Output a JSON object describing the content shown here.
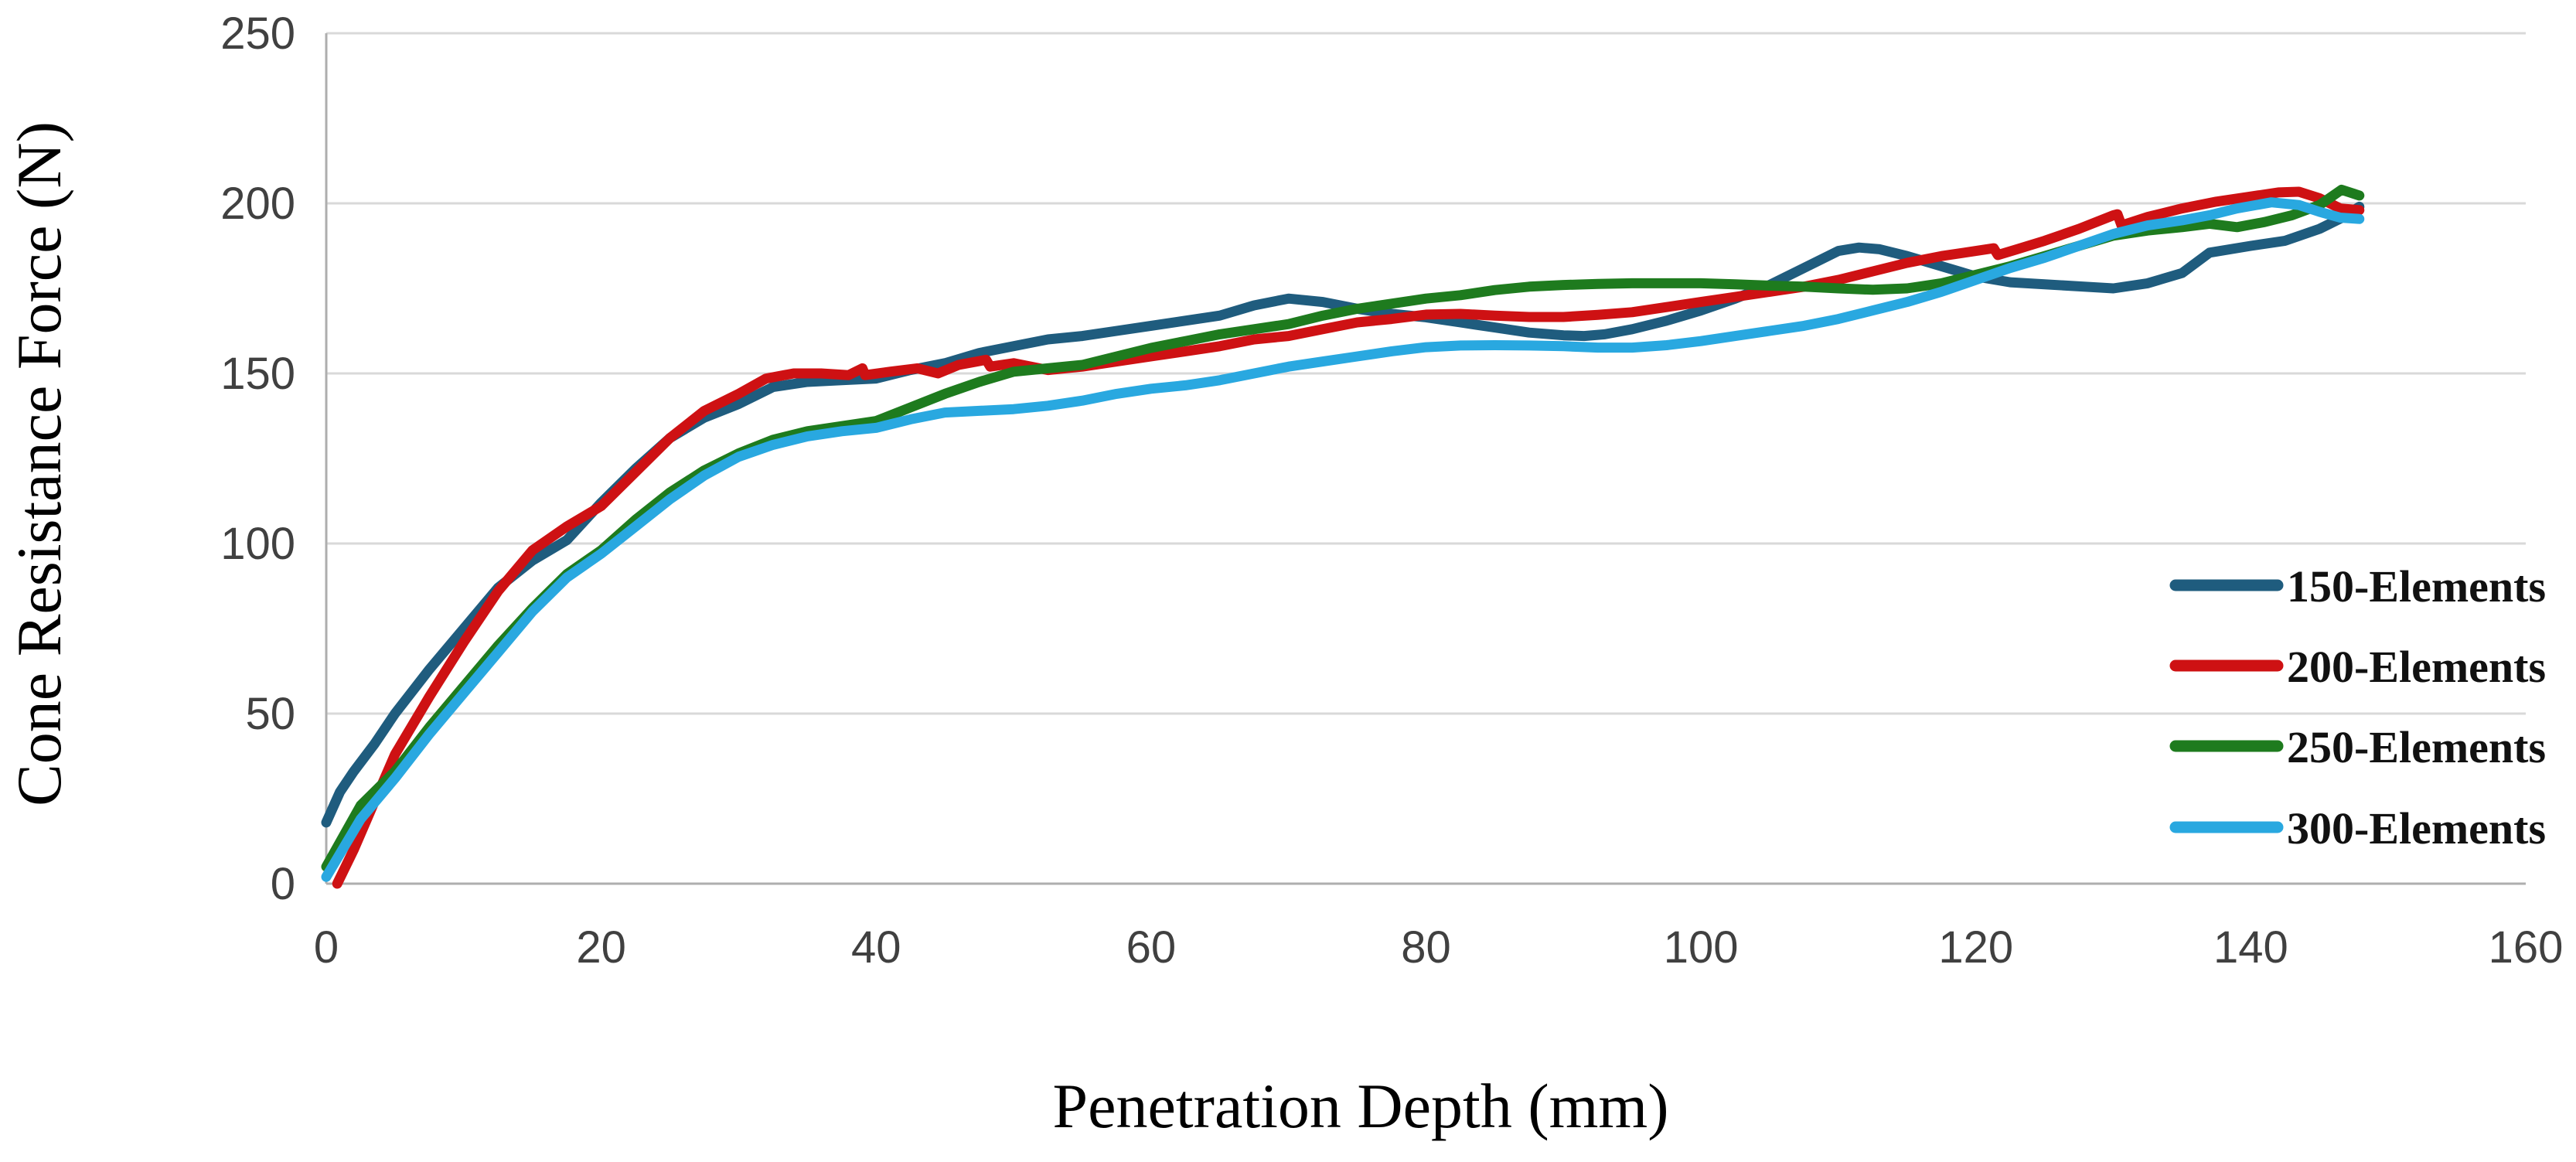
{
  "chart_data": {
    "type": "line",
    "title": "",
    "xlabel": "Penetration Depth (mm)",
    "ylabel": "Cone Resistance Force (N)",
    "xlim": [
      0,
      160
    ],
    "ylim": [
      0,
      250
    ],
    "xticks": [
      0,
      20,
      40,
      60,
      80,
      100,
      120,
      140,
      160
    ],
    "yticks": [
      0,
      50,
      100,
      150,
      200,
      250
    ],
    "grid": "horizontal-only",
    "legend_position": "right-inside",
    "series": [
      {
        "name": "150-Elements",
        "color": "#1F5C7E",
        "x": [
          0,
          1,
          2,
          3.5,
          5,
          7.5,
          10,
          12.5,
          15,
          17.5,
          20,
          22.5,
          25,
          27.5,
          30,
          32.5,
          35,
          37.5,
          40,
          42.5,
          45,
          47.5,
          50,
          52.5,
          55,
          57.5,
          60,
          62.5,
          65,
          67.5,
          70,
          72.5,
          75,
          77.5,
          80,
          82.5,
          85,
          87.5,
          90,
          91.5,
          93,
          95,
          97.5,
          100,
          102.5,
          105,
          107.5,
          110,
          111.5,
          113,
          115,
          117.5,
          120,
          122.5,
          125,
          127.5,
          130,
          132.5,
          135,
          137,
          140,
          142.5,
          145,
          146.5,
          147.9
        ],
        "y": [
          18,
          27,
          33,
          41,
          50,
          63,
          75,
          87,
          95,
          101,
          112,
          122,
          131,
          137,
          141,
          146,
          147.5,
          148,
          148.5,
          151,
          153,
          156,
          158,
          160,
          161,
          162.5,
          164,
          165.5,
          167,
          170,
          172,
          171,
          169,
          167.5,
          166.5,
          165,
          163.5,
          162,
          161.2,
          161,
          161.5,
          163,
          165.5,
          168.5,
          172,
          176,
          181,
          186,
          187,
          186.5,
          184.5,
          181.5,
          178.5,
          176.8,
          176.2,
          175.6,
          175,
          176.5,
          179.5,
          185.5,
          187.5,
          189,
          192.5,
          195.5,
          199
        ]
      },
      {
        "name": "200-Elements",
        "color": "#CE1113",
        "x": [
          0.8,
          2,
          3.5,
          5,
          7.5,
          10,
          12.5,
          15,
          17.5,
          20,
          22.5,
          25,
          27.5,
          30,
          32,
          34,
          36,
          38,
          39,
          39.2,
          41,
          43,
          44.5,
          46,
          48,
          48.3,
          50,
          52.5,
          55,
          57.5,
          60,
          62.5,
          65,
          67.5,
          70,
          72.5,
          75,
          77.5,
          80,
          82.5,
          85,
          87.5,
          90,
          92.5,
          95,
          97.5,
          100,
          102.5,
          105,
          107.5,
          110,
          112.5,
          115,
          117.5,
          120,
          121.3,
          121.6,
          123,
          125,
          127.5,
          130,
          130.3,
          130.6,
          132.5,
          135,
          137.5,
          140,
          142,
          143.5,
          145,
          146.5,
          147.9
        ],
        "y": [
          0,
          10,
          24,
          38,
          55,
          71,
          86,
          98,
          105,
          111,
          121,
          131,
          139,
          144,
          148.5,
          150,
          150,
          149.5,
          151.5,
          149.5,
          150.5,
          151.5,
          150,
          152.5,
          154,
          152,
          153,
          151,
          152,
          153.5,
          155,
          156.5,
          158,
          160,
          161,
          163,
          165,
          166,
          167.3,
          167.5,
          167,
          166.6,
          166.6,
          167.2,
          168,
          169.5,
          171,
          172.5,
          174,
          175.5,
          177.5,
          180,
          182.5,
          184.5,
          186,
          186.8,
          184.8,
          186.5,
          189,
          192.5,
          196.5,
          196.8,
          193.5,
          196,
          198.5,
          200.5,
          202,
          203.2,
          203.4,
          201.5,
          198.5,
          198
        ]
      },
      {
        "name": "250-Elements",
        "color": "#1E7B1E",
        "x": [
          0,
          2.5,
          5,
          7.5,
          10,
          12.5,
          15,
          17.5,
          20,
          22.5,
          25,
          27.5,
          30,
          32.5,
          35,
          37.5,
          40,
          42.5,
          45,
          47.5,
          50,
          52.5,
          55,
          57.5,
          60,
          62.5,
          65,
          67.5,
          70,
          72.5,
          75,
          77.5,
          80,
          82.5,
          85,
          87.5,
          90,
          92.5,
          95,
          100,
          102.5,
          105,
          107.5,
          110,
          112.5,
          115,
          117.5,
          120,
          122.5,
          125,
          127.5,
          130,
          132.5,
          135,
          137,
          139,
          141,
          143,
          145,
          146.6,
          147.9
        ],
        "y": [
          5,
          23,
          33,
          46,
          58,
          70,
          81,
          91,
          98,
          107,
          115,
          121.5,
          126.5,
          130.5,
          133,
          134.5,
          136,
          140,
          144,
          147.5,
          150.5,
          151.5,
          152.5,
          155,
          157.5,
          159.5,
          161.5,
          163,
          164.5,
          167,
          169,
          170.5,
          172,
          173,
          174.5,
          175.5,
          176,
          176.3,
          176.5,
          176.5,
          176.2,
          175.8,
          175.5,
          175,
          174.6,
          175,
          176.5,
          179,
          181.5,
          184.5,
          187.5,
          190.5,
          192,
          193,
          194,
          193,
          194.5,
          196.5,
          199.5,
          204,
          202.3
        ]
      },
      {
        "name": "300-Elements",
        "color": "#29A8E0",
        "x": [
          0,
          2.5,
          5,
          7.5,
          10,
          12.5,
          15,
          17.5,
          20,
          22.5,
          25,
          27.5,
          30,
          32.5,
          35,
          37.5,
          40,
          42.5,
          45,
          47.5,
          50,
          52.5,
          55,
          57.5,
          60,
          62.5,
          65,
          67.5,
          70,
          72.5,
          75,
          77.5,
          80,
          82.5,
          85,
          87.5,
          90,
          92.5,
          95,
          97.5,
          100,
          102.5,
          105,
          107.5,
          110,
          112.5,
          115,
          117.5,
          120,
          122.5,
          125,
          127.5,
          130,
          132.5,
          135,
          137,
          139,
          141.5,
          143.5,
          145,
          146.5,
          147.9
        ],
        "y": [
          2,
          19,
          31,
          44,
          56,
          68,
          80,
          90,
          97,
          105,
          113,
          120,
          125.5,
          129,
          131.5,
          133,
          134,
          136.5,
          138.5,
          139,
          139.5,
          140.5,
          142,
          144,
          145.5,
          146.5,
          148,
          150,
          152,
          153.5,
          155,
          156.5,
          157.7,
          158.2,
          158.3,
          158.2,
          158,
          157.6,
          157.6,
          158.3,
          159.5,
          161,
          162.5,
          164,
          166,
          168.5,
          171,
          174,
          177.5,
          181,
          184,
          187.5,
          191,
          193.5,
          195,
          196.5,
          198.5,
          200.3,
          199.5,
          197.5,
          195.8,
          195.4
        ]
      }
    ]
  },
  "legend": {
    "items": [
      {
        "label": "150-Elements",
        "color": "#1F5C7E"
      },
      {
        "label": "200-Elements",
        "color": "#CE1113"
      },
      {
        "label": "250-Elements",
        "color": "#1E7B1E"
      },
      {
        "label": "300-Elements",
        "color": "#29A8E0"
      }
    ]
  },
  "colors": {
    "background": "#ffffff",
    "gridline": "#d9d9d9",
    "axisline": "#aeaeae",
    "tick_text": "#404040",
    "title_text": "#000000"
  }
}
